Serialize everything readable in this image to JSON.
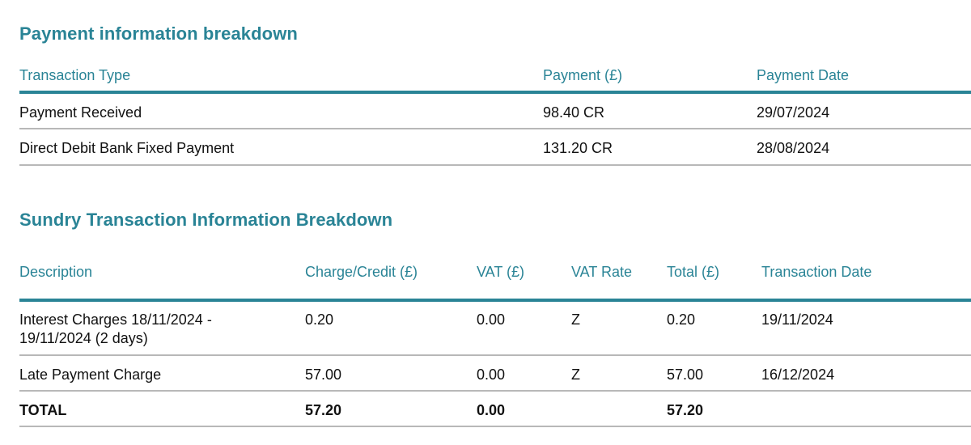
{
  "payment_section": {
    "title": "Payment information breakdown",
    "columns": [
      "Transaction Type",
      "Payment (£)",
      "Payment Date"
    ],
    "rows": [
      {
        "type": "Payment Received",
        "payment": "98.40 CR",
        "date": "29/07/2024"
      },
      {
        "type": "Direct Debit Bank Fixed Payment",
        "payment": "131.20 CR",
        "date": "28/08/2024"
      }
    ]
  },
  "sundry_section": {
    "title": "Sundry Transaction Information Breakdown",
    "columns": [
      "Description",
      "Charge/Credit (£)",
      "VAT (£)",
      "VAT Rate",
      "Total (£)",
      "Transaction Date"
    ],
    "rows": [
      {
        "description": "Interest Charges 18/11/2024 - 19/11/2024 (2 days)",
        "charge": "0.20",
        "vat": "0.00",
        "vat_rate": "Z",
        "total": "0.20",
        "date": "19/11/2024"
      },
      {
        "description": "Late Payment Charge",
        "charge": "57.00",
        "vat": "0.00",
        "vat_rate": "Z",
        "total": "57.00",
        "date": "16/12/2024"
      }
    ],
    "totals": {
      "label": "TOTAL",
      "charge": "57.20",
      "vat": "0.00",
      "total": "57.20"
    }
  },
  "colors": {
    "accent": "#2a8496",
    "rule": "#b8b8b8",
    "text": "#111111"
  }
}
